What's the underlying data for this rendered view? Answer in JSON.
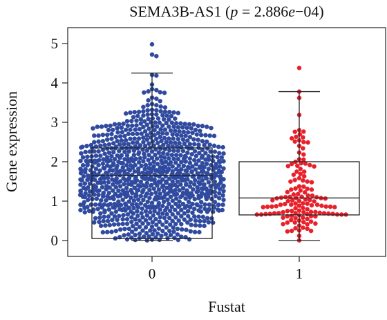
{
  "chart_data": {
    "type": "beeswarm-boxplot",
    "title": {
      "gene": "SEMA3B-AS1 (",
      "p_label": "p",
      "p_eq": " = 2.886",
      "exp_e": "e",
      "exp_rest": "−04)"
    },
    "xlabel": "Fustat",
    "ylabel": "Gene expression",
    "categories": [
      "0",
      "1"
    ],
    "ylim": [
      0,
      5
    ],
    "yticks": [
      "0",
      "1",
      "2",
      "3",
      "4",
      "5"
    ],
    "grid": false,
    "groups": [
      {
        "name": "0",
        "color": "#2f4a9e",
        "n_points": 1000,
        "box": {
          "whisker_low": 0.0,
          "q1": 0.05,
          "median": 1.65,
          "q3": 2.35,
          "whisker_high": 4.25
        },
        "max_point": 4.98
      },
      {
        "name": "1",
        "color": "#e8202a",
        "n_points": 140,
        "box": {
          "whisker_low": 0.0,
          "q1": 0.65,
          "median": 1.08,
          "q3": 2.0,
          "whisker_high": 3.78
        },
        "max_point": 4.38
      }
    ]
  }
}
